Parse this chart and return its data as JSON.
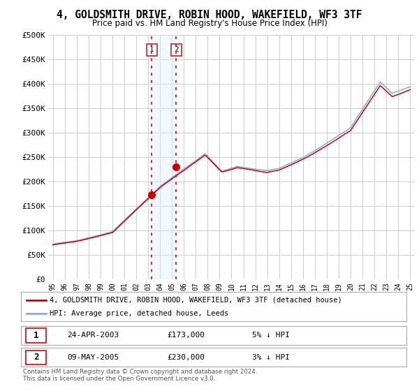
{
  "title": "4, GOLDSMITH DRIVE, ROBIN HOOD, WAKEFIELD, WF3 3TF",
  "subtitle": "Price paid vs. HM Land Registry's House Price Index (HPI)",
  "ylim": [
    0,
    500000
  ],
  "yticks": [
    0,
    50000,
    100000,
    150000,
    200000,
    250000,
    300000,
    350000,
    400000,
    450000,
    500000
  ],
  "ytick_labels": [
    "£0",
    "£50K",
    "£100K",
    "£150K",
    "£200K",
    "£250K",
    "£300K",
    "£350K",
    "£400K",
    "£450K",
    "£500K"
  ],
  "sale1_year": 2003.31,
  "sale1_price": 173000,
  "sale2_year": 2005.36,
  "sale2_price": 230000,
  "hpi_color": "#88aadd",
  "price_color": "#cc0000",
  "highlight_color": "#ddeeff",
  "vline_color": "#cc3333",
  "legend_line1": "4, GOLDSMITH DRIVE, ROBIN HOOD, WAKEFIELD, WF3 3TF (detached house)",
  "legend_line2": "HPI: Average price, detached house, Leeds",
  "table_row1_num": "1",
  "table_row1_date": "24-APR-2003",
  "table_row1_price": "£173,000",
  "table_row1_hpi": "5% ↓ HPI",
  "table_row2_num": "2",
  "table_row2_date": "09-MAY-2005",
  "table_row2_price": "£230,000",
  "table_row2_hpi": "3% ↓ HPI",
  "footnote1": "Contains HM Land Registry data © Crown copyright and database right 2024.",
  "footnote2": "This data is licensed under the Open Government Licence v3.0.",
  "background_color": "#ffffff"
}
